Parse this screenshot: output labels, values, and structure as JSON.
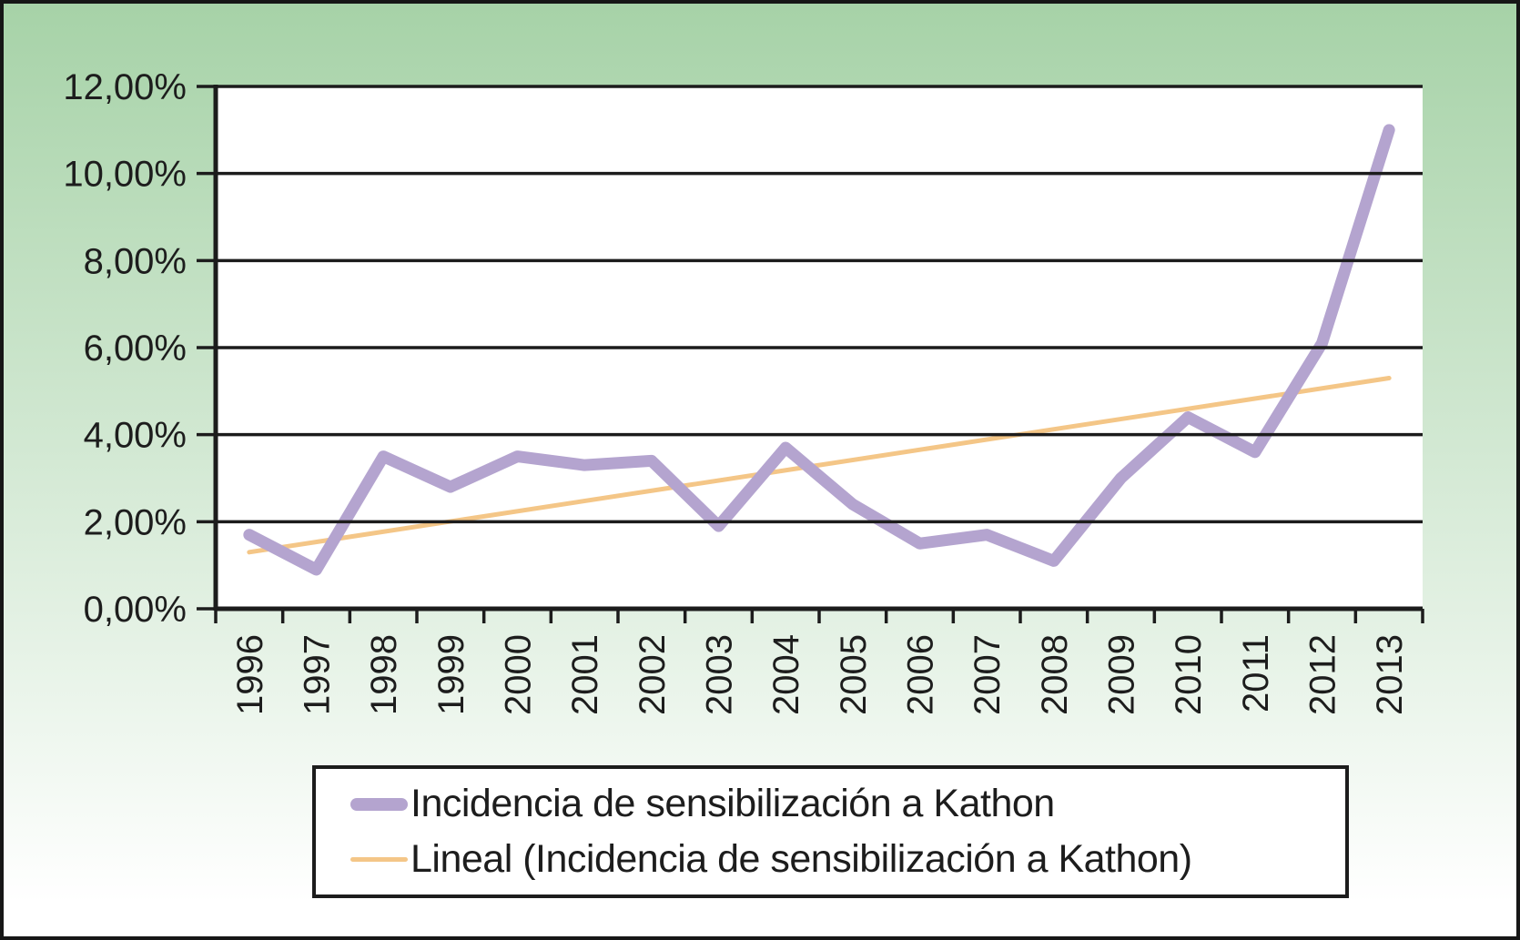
{
  "chart_data": {
    "type": "line",
    "title": "",
    "xlabel": "",
    "ylabel": "",
    "categories": [
      "1996",
      "1997",
      "1998",
      "1999",
      "2000",
      "2001",
      "2002",
      "2003",
      "2004",
      "2005",
      "2006",
      "2007",
      "2008",
      "2009",
      "2010",
      "2011",
      "2012",
      "2013"
    ],
    "series": [
      {
        "name": "Incidencia de sensibilización a Kathon",
        "color": "#b4a4cf",
        "line_width": 13,
        "values": [
          1.7,
          0.9,
          3.5,
          2.8,
          3.5,
          3.3,
          3.4,
          1.9,
          3.7,
          2.4,
          1.5,
          1.7,
          1.1,
          3.0,
          4.4,
          3.6,
          6.1,
          11.0
        ]
      },
      {
        "name": "Lineal (Incidencia de sensibilización a Kathon)",
        "color": "#f4c687",
        "line_width": 5,
        "trend_endpoints": [
          1.3,
          5.3
        ]
      }
    ],
    "ylim": [
      0,
      12
    ],
    "ytick_step": 2,
    "ytick_labels": [
      "0,00%",
      "2,00%",
      "4,00%",
      "6,00%",
      "8,00%",
      "10,00%",
      "12,00%"
    ],
    "grid": true,
    "legend_position": "bottom"
  },
  "colors": {
    "background_top": "#a6d2a7",
    "background_bottom": "#ffffff",
    "plot_background": "#ffffff",
    "grid": "#1c1c1c",
    "border": "#161616",
    "text": "#1d1d1d",
    "legend_background": "#ffffff"
  }
}
